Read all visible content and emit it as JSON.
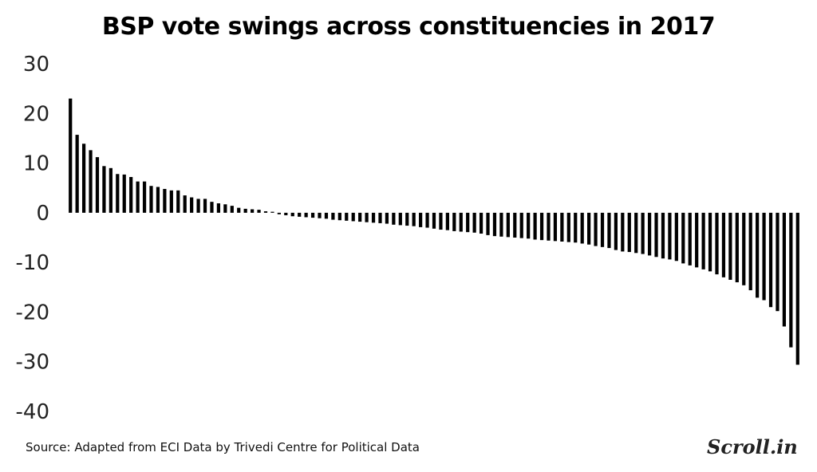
{
  "title": "BSP vote swings across constituencies in 2017",
  "source": "Source: Adapted from ECI Data by Trivedi Centre for Political Data",
  "brand": "Scroll.in",
  "colors": {
    "bar": "#000000",
    "text": "#222222",
    "background": "#ffffff"
  },
  "chart_data": {
    "type": "bar",
    "title": "BSP vote swings across constituencies in 2017",
    "xlabel": "",
    "ylabel": "",
    "ylim": [
      -40,
      30
    ],
    "yticks": [
      30,
      20,
      10,
      0,
      -10,
      -20,
      -30,
      -40
    ],
    "ytick_labels": [
      "30",
      "20",
      "10",
      "0",
      "-10",
      "-20",
      "-30",
      "-40"
    ],
    "grid": false,
    "legend": "none",
    "series": [
      {
        "values": [
          23.0,
          15.7,
          13.9,
          12.6,
          11.2,
          9.4,
          9.0,
          7.8,
          7.7,
          7.2,
          6.3,
          6.3,
          5.4,
          5.2,
          4.8,
          4.5,
          4.5,
          3.5,
          3.1,
          2.8,
          2.8,
          2.2,
          1.9,
          1.7,
          1.4,
          1.0,
          0.8,
          0.7,
          0.6,
          0.3,
          0.2,
          -0.3,
          -0.5,
          -0.7,
          -0.8,
          -0.9,
          -1.0,
          -1.1,
          -1.2,
          -1.4,
          -1.5,
          -1.6,
          -1.7,
          -1.8,
          -1.9,
          -2.0,
          -2.1,
          -2.2,
          -2.4,
          -2.5,
          -2.6,
          -2.7,
          -2.9,
          -3.0,
          -3.2,
          -3.4,
          -3.5,
          -3.7,
          -3.8,
          -3.9,
          -4.0,
          -4.2,
          -4.5,
          -4.7,
          -4.8,
          -4.9,
          -5.0,
          -5.1,
          -5.2,
          -5.4,
          -5.5,
          -5.6,
          -5.7,
          -5.8,
          -5.9,
          -6.0,
          -6.2,
          -6.4,
          -6.7,
          -6.9,
          -7.1,
          -7.5,
          -7.8,
          -7.9,
          -8.1,
          -8.3,
          -8.6,
          -8.9,
          -9.2,
          -9.4,
          -9.7,
          -10.2,
          -10.6,
          -11.0,
          -11.4,
          -11.8,
          -12.4,
          -13.0,
          -13.5,
          -14.0,
          -14.6,
          -15.6,
          -17.1,
          -17.6,
          -19.0,
          -19.8,
          -22.9,
          -27.1,
          -30.6
        ]
      }
    ]
  }
}
